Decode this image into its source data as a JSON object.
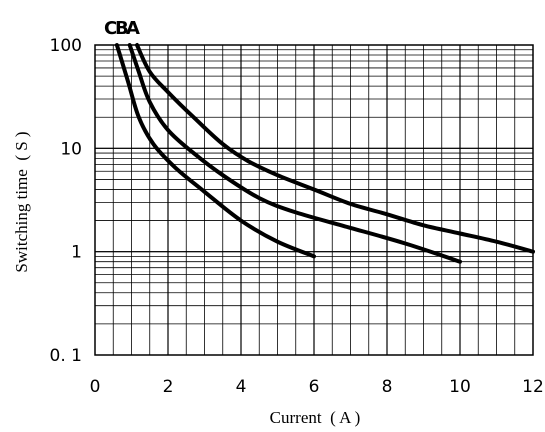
{
  "chart_data": {
    "type": "line",
    "title": "",
    "xlabel": "Current ( A )",
    "ylabel": "Switching time ( S )",
    "xlim": [
      0,
      12
    ],
    "ylim": [
      0.1,
      100
    ],
    "y_scale": "log",
    "grid": true,
    "x_ticks": [
      0,
      2,
      4,
      6,
      8,
      10,
      12
    ],
    "x_tick_labels": [
      "0",
      "2",
      "4",
      "6",
      "8",
      "10",
      "12"
    ],
    "y_ticks": [
      0.1,
      1,
      10,
      100
    ],
    "y_tick_labels": [
      "0. 1",
      "1",
      "10",
      "100"
    ],
    "series": [
      {
        "name": "C",
        "x": [
          0.6,
          0.9,
          1.2,
          1.6,
          2.2,
          3.0,
          4.0,
          5.0,
          6.0
        ],
        "y": [
          100,
          45,
          20,
          11,
          6.5,
          3.8,
          2.0,
          1.25,
          0.9
        ]
      },
      {
        "name": "B",
        "x": [
          0.95,
          1.2,
          1.5,
          2.0,
          2.7,
          3.5,
          4.5,
          5.5,
          7.0,
          8.5,
          10.0
        ],
        "y": [
          100,
          55,
          28,
          15,
          9.0,
          5.5,
          3.3,
          2.4,
          1.7,
          1.2,
          0.8
        ]
      },
      {
        "name": "A",
        "x": [
          1.15,
          1.5,
          2.0,
          2.7,
          3.5,
          4.2,
          5.0,
          6.0,
          7.0,
          8.0,
          9.0,
          10.0,
          11.0,
          12.0
        ],
        "y": [
          100,
          55,
          35,
          20,
          11,
          7.5,
          5.5,
          4.0,
          2.9,
          2.3,
          1.8,
          1.5,
          1.25,
          1.0
        ]
      }
    ]
  }
}
